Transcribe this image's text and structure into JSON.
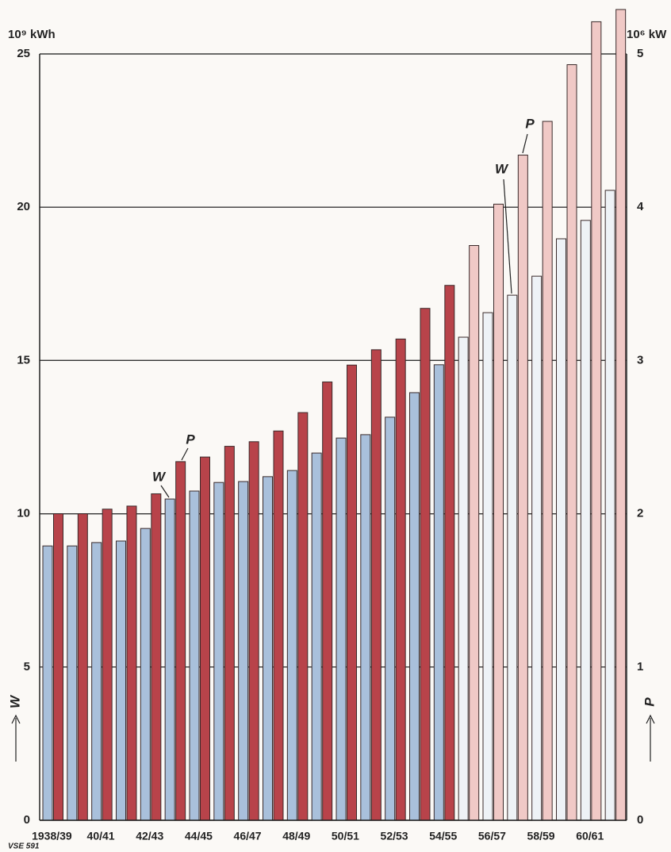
{
  "chart_data": {
    "type": "bar",
    "y_unit": "10⁹ kWh",
    "y2_unit": "10⁶ kW",
    "y_label": "W",
    "y2_label": "P",
    "annotations": [
      "W",
      "P",
      "W",
      "P"
    ],
    "footnote": "VSE 591",
    "categories": [
      "1938/39",
      null,
      "40/41",
      null,
      "42/43",
      null,
      "44/45",
      null,
      "46/47",
      null,
      "48/49",
      null,
      "50/51",
      null,
      "52/53",
      null,
      "54/55",
      null,
      "56/57",
      null,
      "58/59",
      null,
      "60/61",
      null
    ],
    "series": [
      {
        "name": "W",
        "color": "#a9c0db",
        "colors": [
          "#a9c0db",
          "#a9c0db",
          "#a9c0db",
          "#a9c0db",
          "#a9c0db",
          "#a9c0db",
          "#a9c0db",
          "#a9c0db",
          "#a9c0db",
          "#a9c0db",
          "#a9c0db",
          "#a9c0db",
          "#a9c0db",
          "#a9c0db",
          "#a9c0db",
          "#a9c0db",
          "#a9c0db",
          "#eef2f6",
          "#eef2f6",
          "#eef2f6",
          "#eef2f6",
          "#eef2f6",
          "#eef2f6",
          "#eef2f6"
        ],
        "values": [
          8.95,
          8.95,
          9.06,
          9.11,
          9.52,
          10.48,
          10.74,
          11.02,
          11.05,
          11.21,
          11.41,
          11.98,
          12.47,
          12.58,
          13.15,
          13.95,
          14.86,
          15.76,
          16.56,
          17.13,
          17.75,
          18.97,
          19.57,
          20.55
        ]
      },
      {
        "name": "P",
        "color": "#b8434a",
        "axis": "y2",
        "colors": [
          "#b8434a",
          "#b8434a",
          "#b8434a",
          "#b8434a",
          "#b8434a",
          "#b8434a",
          "#b8434a",
          "#b8434a",
          "#b8434a",
          "#b8434a",
          "#b8434a",
          "#b8434a",
          "#b8434a",
          "#b8434a",
          "#b8434a",
          "#b8434a",
          "#b8434a",
          "#f0c9c6",
          "#f0c9c6",
          "#f0c9c6",
          "#f0c9c6",
          "#f0c9c6",
          "#f0c9c6",
          "#f0c9c6"
        ],
        "values": [
          2.0,
          2.0,
          2.03,
          2.05,
          2.13,
          2.34,
          2.37,
          2.44,
          2.47,
          2.54,
          2.66,
          2.86,
          2.97,
          3.07,
          3.14,
          3.34,
          3.49,
          3.75,
          4.02,
          4.34,
          4.56,
          4.93,
          5.21,
          5.29
        ]
      }
    ],
    "ylim": [
      0,
      25
    ],
    "yticks": [
      0,
      5,
      10,
      15,
      20,
      25
    ],
    "y2lim": [
      0,
      5
    ],
    "y2ticks": [
      0,
      1,
      2,
      3,
      4,
      5
    ],
    "grid": true
  }
}
